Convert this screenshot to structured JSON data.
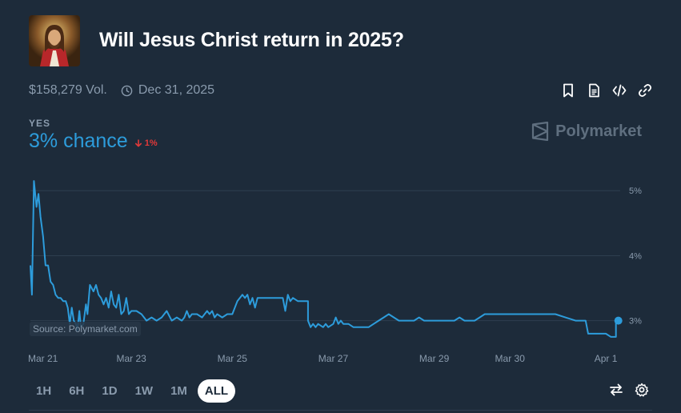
{
  "market": {
    "title": "Will Jesus Christ return in 2025?",
    "volume": "$158,279 Vol.",
    "end_date": "Dec 31, 2025"
  },
  "outcome": {
    "label": "YES",
    "chance": "3% chance",
    "change": "1%",
    "change_color": "#e23939"
  },
  "brand": {
    "name": "Polymarket"
  },
  "source": "Source: Polymarket.com",
  "icons": {
    "actions": [
      "bookmark-icon",
      "document-icon",
      "embed-code-icon",
      "link-icon"
    ],
    "bottom": [
      "swap-arrows-icon",
      "settings-gear-icon"
    ]
  },
  "time_ranges": [
    {
      "label": "1H",
      "active": false
    },
    {
      "label": "6H",
      "active": false
    },
    {
      "label": "1D",
      "active": false
    },
    {
      "label": "1W",
      "active": false
    },
    {
      "label": "1M",
      "active": false
    },
    {
      "label": "ALL",
      "active": true
    }
  ],
  "colors": {
    "line": "#2d9cdb",
    "background": "#1d2b3a",
    "grid": "#2e3e4f"
  },
  "chart_data": {
    "type": "line",
    "title": "",
    "xlabel": "",
    "ylabel": "",
    "x_ticks": [
      {
        "label": "Mar 21",
        "x": 0
      },
      {
        "label": "Mar 23",
        "x": 2
      },
      {
        "label": "Mar 25",
        "x": 4
      },
      {
        "label": "Mar 27",
        "x": 6
      },
      {
        "label": "Mar 29",
        "x": 8
      },
      {
        "label": "Mar 30",
        "x": 9.5
      },
      {
        "label": "Apr 1",
        "x": 11.4
      }
    ],
    "y_ticks": [
      {
        "label": "5%",
        "value": 5
      },
      {
        "label": "4%",
        "value": 4
      },
      {
        "label": "3%",
        "value": 3
      }
    ],
    "xlim": [
      0,
      11.7
    ],
    "ylim": [
      2.7,
      5.2
    ],
    "grid": true,
    "series": [
      {
        "values": [
          [
            0.0,
            3.85
          ],
          [
            0.03,
            3.4
          ],
          [
            0.07,
            5.15
          ],
          [
            0.12,
            4.75
          ],
          [
            0.16,
            4.95
          ],
          [
            0.2,
            4.6
          ],
          [
            0.25,
            4.3
          ],
          [
            0.3,
            3.85
          ],
          [
            0.35,
            3.85
          ],
          [
            0.4,
            3.6
          ],
          [
            0.45,
            3.55
          ],
          [
            0.5,
            3.4
          ],
          [
            0.55,
            3.35
          ],
          [
            0.6,
            3.35
          ],
          [
            0.65,
            3.3
          ],
          [
            0.7,
            3.3
          ],
          [
            0.74,
            3.2
          ],
          [
            0.78,
            2.95
          ],
          [
            0.82,
            3.2
          ],
          [
            0.86,
            3.0
          ],
          [
            0.9,
            2.95
          ],
          [
            0.93,
            2.85
          ],
          [
            0.97,
            3.15
          ],
          [
            1.0,
            2.9
          ],
          [
            1.05,
            2.95
          ],
          [
            1.1,
            3.25
          ],
          [
            1.13,
            3.1
          ],
          [
            1.18,
            3.55
          ],
          [
            1.25,
            3.45
          ],
          [
            1.3,
            3.55
          ],
          [
            1.35,
            3.4
          ],
          [
            1.4,
            3.35
          ],
          [
            1.45,
            3.25
          ],
          [
            1.5,
            3.35
          ],
          [
            1.55,
            3.2
          ],
          [
            1.6,
            3.45
          ],
          [
            1.65,
            3.25
          ],
          [
            1.7,
            3.2
          ],
          [
            1.75,
            3.4
          ],
          [
            1.8,
            3.1
          ],
          [
            1.85,
            3.15
          ],
          [
            1.9,
            3.35
          ],
          [
            1.95,
            3.1
          ],
          [
            2.0,
            3.15
          ],
          [
            2.1,
            3.15
          ],
          [
            2.2,
            3.1
          ],
          [
            2.3,
            3.0
          ],
          [
            2.4,
            3.05
          ],
          [
            2.5,
            3.0
          ],
          [
            2.6,
            3.05
          ],
          [
            2.7,
            3.15
          ],
          [
            2.8,
            3.0
          ],
          [
            2.9,
            3.05
          ],
          [
            3.0,
            3.0
          ],
          [
            3.05,
            3.05
          ],
          [
            3.1,
            3.15
          ],
          [
            3.15,
            3.05
          ],
          [
            3.2,
            3.1
          ],
          [
            3.3,
            3.1
          ],
          [
            3.4,
            3.05
          ],
          [
            3.5,
            3.15
          ],
          [
            3.55,
            3.1
          ],
          [
            3.6,
            3.15
          ],
          [
            3.65,
            3.05
          ],
          [
            3.7,
            3.1
          ],
          [
            3.8,
            3.05
          ],
          [
            3.9,
            3.1
          ],
          [
            4.0,
            3.1
          ],
          [
            4.1,
            3.3
          ],
          [
            4.2,
            3.4
          ],
          [
            4.25,
            3.35
          ],
          [
            4.3,
            3.4
          ],
          [
            4.35,
            3.25
          ],
          [
            4.4,
            3.35
          ],
          [
            4.45,
            3.2
          ],
          [
            4.5,
            3.35
          ],
          [
            4.6,
            3.35
          ],
          [
            4.7,
            3.35
          ],
          [
            4.8,
            3.35
          ],
          [
            4.9,
            3.35
          ],
          [
            5.0,
            3.35
          ],
          [
            5.05,
            3.15
          ],
          [
            5.1,
            3.4
          ],
          [
            5.15,
            3.3
          ],
          [
            5.2,
            3.35
          ],
          [
            5.3,
            3.3
          ],
          [
            5.5,
            3.3
          ],
          [
            5.5,
            3.0
          ],
          [
            5.55,
            2.9
          ],
          [
            5.6,
            2.95
          ],
          [
            5.65,
            2.9
          ],
          [
            5.7,
            2.95
          ],
          [
            5.8,
            2.9
          ],
          [
            5.85,
            2.95
          ],
          [
            5.9,
            2.9
          ],
          [
            6.0,
            2.95
          ],
          [
            6.05,
            3.05
          ],
          [
            6.1,
            2.95
          ],
          [
            6.15,
            3.0
          ],
          [
            6.2,
            2.95
          ],
          [
            6.3,
            2.95
          ],
          [
            6.4,
            2.9
          ],
          [
            6.5,
            2.9
          ],
          [
            6.6,
            2.9
          ],
          [
            6.7,
            2.9
          ],
          [
            6.8,
            2.95
          ],
          [
            6.9,
            3.0
          ],
          [
            7.0,
            3.05
          ],
          [
            7.1,
            3.1
          ],
          [
            7.2,
            3.05
          ],
          [
            7.3,
            3.0
          ],
          [
            7.4,
            3.0
          ],
          [
            7.5,
            3.0
          ],
          [
            7.6,
            3.0
          ],
          [
            7.7,
            3.05
          ],
          [
            7.8,
            3.0
          ],
          [
            7.9,
            3.0
          ],
          [
            8.0,
            3.0
          ],
          [
            8.1,
            3.0
          ],
          [
            8.2,
            3.0
          ],
          [
            8.3,
            3.0
          ],
          [
            8.4,
            3.0
          ],
          [
            8.5,
            3.05
          ],
          [
            8.6,
            3.0
          ],
          [
            8.7,
            3.0
          ],
          [
            8.8,
            3.0
          ],
          [
            8.9,
            3.05
          ],
          [
            9.0,
            3.1
          ],
          [
            9.1,
            3.1
          ],
          [
            9.5,
            3.1
          ],
          [
            9.8,
            3.1
          ],
          [
            10.1,
            3.1
          ],
          [
            10.4,
            3.1
          ],
          [
            10.6,
            3.05
          ],
          [
            10.8,
            3.0
          ],
          [
            11.0,
            3.0
          ],
          [
            11.05,
            2.8
          ],
          [
            11.2,
            2.8
          ],
          [
            11.4,
            2.8
          ],
          [
            11.5,
            2.75
          ],
          [
            11.6,
            2.75
          ],
          [
            11.6,
            3.0
          ]
        ]
      }
    ]
  }
}
